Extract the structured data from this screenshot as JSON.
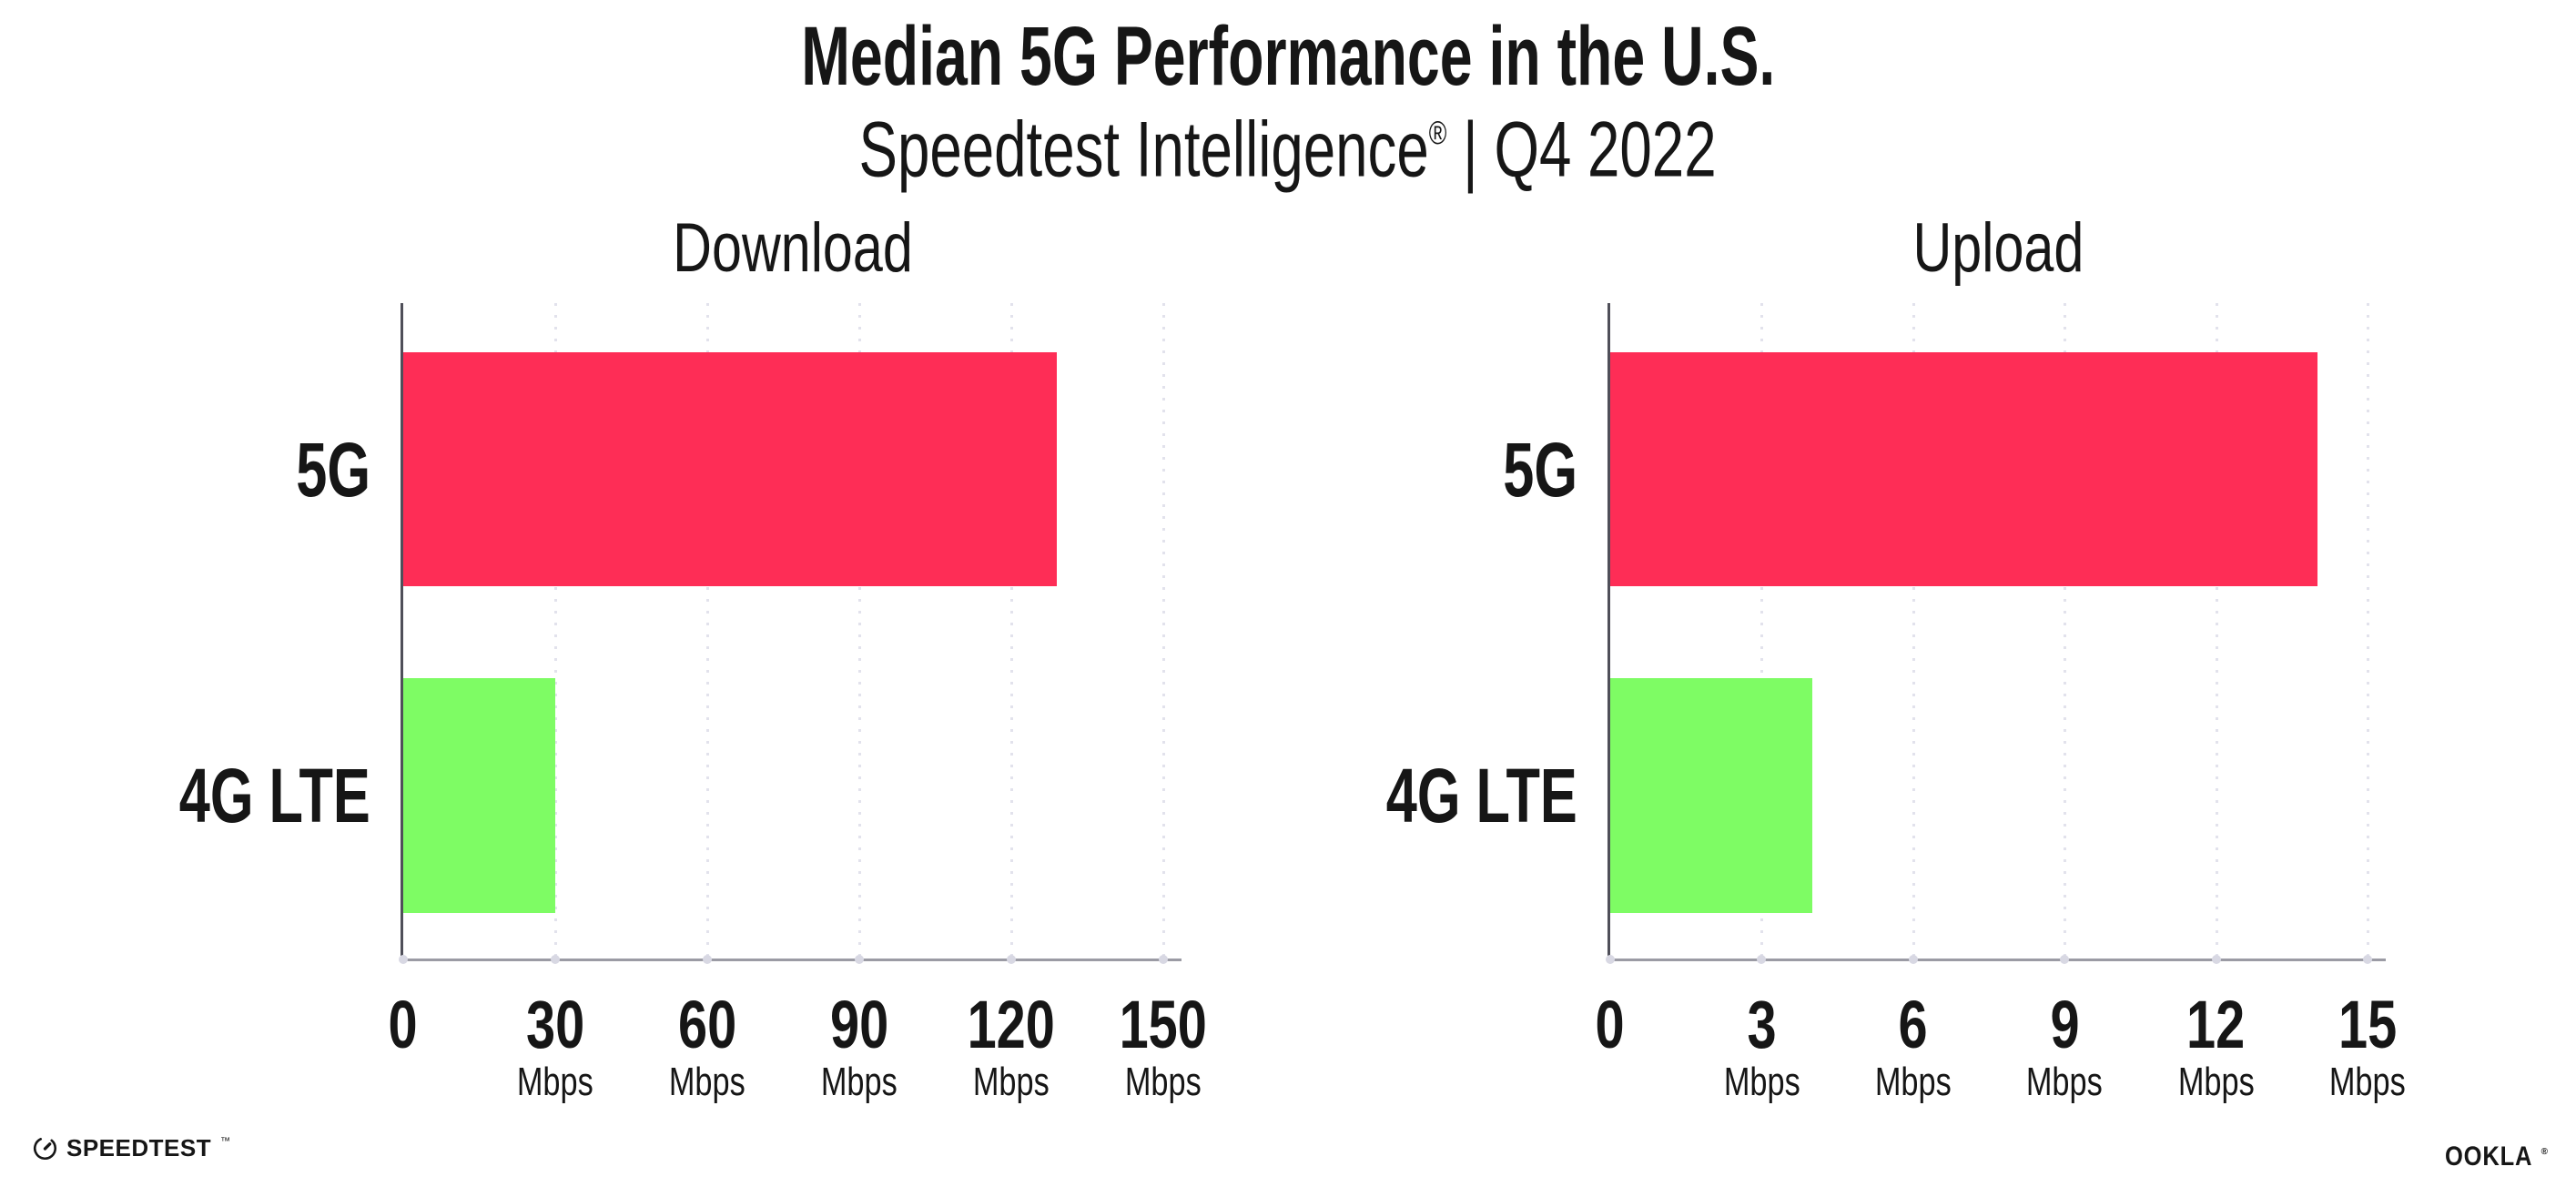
{
  "title": "Median 5G Performance in the U.S.",
  "subtitle": {
    "brand": "Speedtest Intelligence",
    "reg": "®",
    "sep": "|",
    "period": "Q4 2022"
  },
  "colors": {
    "bar_5g_pink": "#FE2D56",
    "bar_4g_green": "#7EFC64",
    "y_axis_line": "#4F4F59",
    "x_axis_line": "#9B9BA4",
    "grid_dot": "#E2E2EC",
    "tick_dot": "#D8D8E3",
    "text": "#161616"
  },
  "chart_data": [
    {
      "type": "bar",
      "orientation": "horizontal",
      "title": "Download",
      "categories": [
        "5G",
        "4G LTE"
      ],
      "values": [
        129,
        30
      ],
      "unit": "Mbps",
      "xlim": [
        0,
        150
      ],
      "xticks": [
        0,
        30,
        60,
        90,
        120,
        150
      ],
      "bar_colors": [
        "#FE2D56",
        "#7EFC64"
      ],
      "grid": "dotted-vertical-at-ticks",
      "legend": "none"
    },
    {
      "type": "bar",
      "orientation": "horizontal",
      "title": "Upload",
      "categories": [
        "5G",
        "4G LTE"
      ],
      "values": [
        14,
        4
      ],
      "unit": "Mbps",
      "xlim": [
        0,
        15
      ],
      "xticks": [
        0,
        3,
        6,
        9,
        12,
        15
      ],
      "bar_colors": [
        "#FE2D56",
        "#7EFC64"
      ],
      "grid": "dotted-vertical-at-ticks",
      "legend": "none"
    }
  ],
  "footer": {
    "speedtest_label": "SPEEDTEST",
    "speedtest_tm": "™",
    "ookla_label": "OOKLA",
    "ookla_reg": "®"
  }
}
